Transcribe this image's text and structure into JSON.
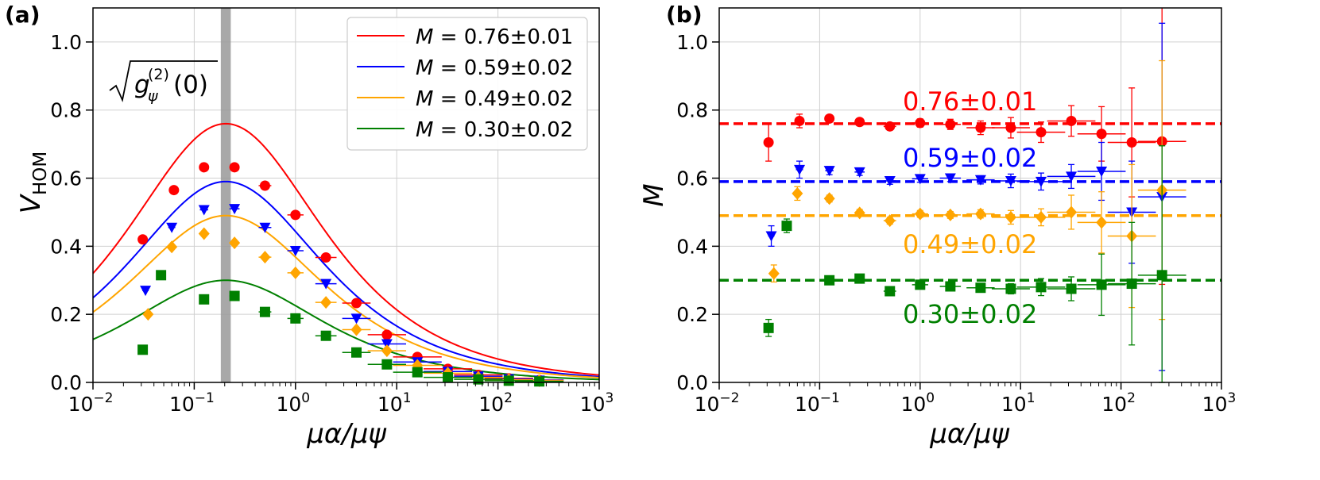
{
  "chart_data": [
    {
      "panel": "(a)",
      "type": "scatter",
      "xscale": "log",
      "xlim": [
        0.01,
        1000
      ],
      "ylim": [
        0.0,
        1.1
      ],
      "xlabel_base": "μα/μψ",
      "ylabel_base": "V",
      "ylabel_sub": "HOM",
      "yticks": [
        "0.0",
        "0.2",
        "0.4",
        "0.6",
        "0.8",
        "1.0"
      ],
      "grid": true,
      "legend_position": "top-right",
      "vband_center": 0.205,
      "annotation": {
        "prefix": "g",
        "sub": "ψ",
        "sup": "(2)",
        "arg": "(0)"
      },
      "series": [
        {
          "name": "M = 0.76±0.01",
          "M": 0.76,
          "color": "#ff0000",
          "marker": "circle",
          "x": [
            0.031,
            0.063,
            0.125,
            0.25,
            0.5,
            1,
            2,
            4,
            8,
            16,
            32,
            64,
            128,
            256
          ],
          "y": [
            0.42,
            0.565,
            0.632,
            0.632,
            0.578,
            0.492,
            0.367,
            0.233,
            0.14,
            0.075,
            0.04,
            0.022,
            0.012,
            0.007
          ]
        },
        {
          "name": "M = 0.59±0.02",
          "M": 0.59,
          "color": "#0000ff",
          "marker": "triangle-down",
          "x": [
            0.033,
            0.06,
            0.125,
            0.25,
            0.5,
            1,
            2,
            4,
            8,
            16,
            32,
            64,
            128,
            256
          ],
          "y": [
            0.27,
            0.455,
            0.507,
            0.51,
            0.455,
            0.387,
            0.29,
            0.188,
            0.113,
            0.06,
            0.032,
            0.018,
            0.01,
            0.006
          ]
        },
        {
          "name": "M = 0.49±0.02",
          "M": 0.49,
          "color": "#ffa500",
          "marker": "diamond",
          "x": [
            0.035,
            0.06,
            0.125,
            0.25,
            0.5,
            1,
            2,
            4,
            8,
            16,
            32,
            64,
            128,
            256
          ],
          "y": [
            0.2,
            0.398,
            0.437,
            0.41,
            0.368,
            0.322,
            0.235,
            0.155,
            0.093,
            0.05,
            0.027,
            0.015,
            0.008,
            0.005
          ]
        },
        {
          "name": "M = 0.30±0.02",
          "M": 0.3,
          "color": "#008000",
          "marker": "square",
          "x": [
            0.031,
            0.047,
            0.125,
            0.25,
            0.5,
            1,
            2,
            4,
            8,
            16,
            32,
            64,
            128,
            256
          ],
          "y": [
            0.096,
            0.315,
            0.244,
            0.254,
            0.207,
            0.188,
            0.137,
            0.088,
            0.053,
            0.03,
            0.015,
            0.009,
            0.005,
            0.003
          ]
        }
      ]
    },
    {
      "panel": "(b)",
      "type": "scatter",
      "xscale": "log",
      "xlim": [
        0.01,
        1000
      ],
      "ylim": [
        0.0,
        1.1
      ],
      "xlabel_base": "μα/μψ",
      "ylabel": "M",
      "yticks": [
        "0.0",
        "0.2",
        "0.4",
        "0.6",
        "0.8",
        "1.0"
      ],
      "grid": true,
      "series": [
        {
          "name": "0.76±0.01",
          "M": 0.76,
          "color": "#ff0000",
          "marker": "circle",
          "x": [
            0.031,
            0.063,
            0.125,
            0.25,
            0.5,
            1,
            2,
            4,
            8,
            16,
            32,
            64,
            128,
            256
          ],
          "y": [
            0.705,
            0.768,
            0.775,
            0.765,
            0.752,
            0.762,
            0.758,
            0.748,
            0.748,
            0.735,
            0.768,
            0.73,
            0.705,
            0.708
          ],
          "err": [
            0.055,
            0.02,
            0.01,
            0.01,
            0.01,
            0.012,
            0.015,
            0.02,
            0.03,
            0.03,
            0.045,
            0.08,
            0.16,
            0.42
          ]
        },
        {
          "name": "0.59±0.02",
          "M": 0.59,
          "color": "#0000ff",
          "marker": "triangle-down",
          "x": [
            0.033,
            0.063,
            0.125,
            0.25,
            0.5,
            1,
            2,
            4,
            8,
            16,
            32,
            64,
            128,
            256
          ],
          "y": [
            0.43,
            0.625,
            0.622,
            0.618,
            0.592,
            0.598,
            0.6,
            0.595,
            0.592,
            0.59,
            0.605,
            0.62,
            0.5,
            0.545
          ],
          "err": [
            0.03,
            0.025,
            0.012,
            0.01,
            0.01,
            0.01,
            0.01,
            0.012,
            0.02,
            0.025,
            0.035,
            0.085,
            0.15,
            0.51
          ]
        },
        {
          "name": "0.49±0.02",
          "M": 0.49,
          "color": "#ffa500",
          "marker": "diamond",
          "x": [
            0.035,
            0.06,
            0.125,
            0.25,
            0.5,
            1,
            2,
            4,
            8,
            16,
            32,
            64,
            128,
            256
          ],
          "y": [
            0.32,
            0.555,
            0.54,
            0.498,
            0.475,
            0.495,
            0.492,
            0.495,
            0.485,
            0.485,
            0.5,
            0.47,
            0.43,
            0.565
          ],
          "err": [
            0.025,
            0.02,
            0.01,
            0.01,
            0.01,
            0.01,
            0.01,
            0.012,
            0.02,
            0.025,
            0.05,
            0.09,
            0.21,
            0.38
          ]
        },
        {
          "name": "0.30±0.02",
          "M": 0.3,
          "color": "#008000",
          "marker": "square",
          "x": [
            0.031,
            0.047,
            0.125,
            0.25,
            0.5,
            1,
            2,
            4,
            8,
            16,
            32,
            64,
            128,
            256
          ],
          "y": [
            0.16,
            0.46,
            0.3,
            0.305,
            0.268,
            0.287,
            0.282,
            0.278,
            0.275,
            0.28,
            0.275,
            0.287,
            0.29,
            0.315
          ],
          "err": [
            0.025,
            0.02,
            0.008,
            0.008,
            0.008,
            0.01,
            0.01,
            0.01,
            0.015,
            0.025,
            0.035,
            0.09,
            0.18,
            0.38
          ]
        }
      ]
    }
  ],
  "panel_labels": {
    "a": "(a)",
    "b": "(b)"
  },
  "xtick_base": "10",
  "xtick_exponents": [
    "−2",
    "−1",
    "0",
    "1",
    "2",
    "3"
  ],
  "legend_prefix": "M",
  "legend_values": [
    "= 0.76±0.01",
    "= 0.59±0.02",
    "= 0.49±0.02",
    "= 0.30±0.02"
  ],
  "b_annotations": [
    "0.76±0.01",
    "0.59±0.02",
    "0.49±0.02",
    "0.30±0.02"
  ]
}
